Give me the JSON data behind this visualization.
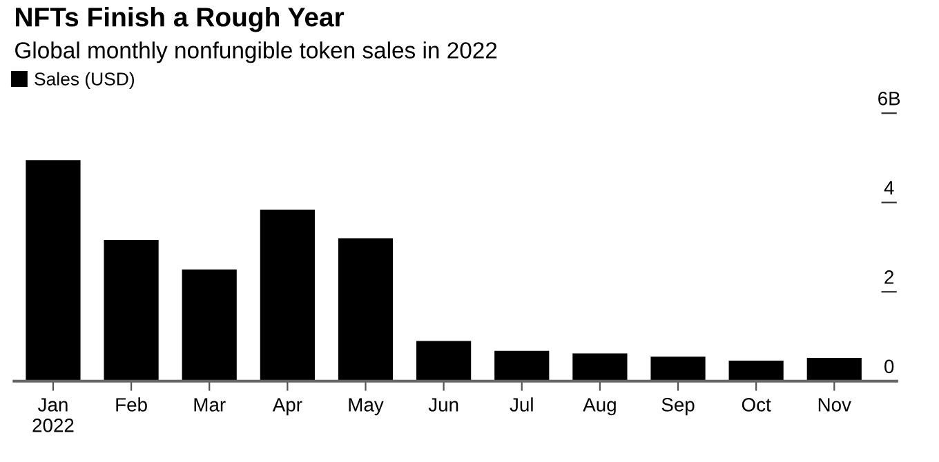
{
  "chart_data": {
    "type": "bar",
    "title": "NFTs Finish a Rough Year",
    "subtitle": "Global monthly nonfungible token sales in 2022",
    "categories": [
      "Jan\n2022",
      "Feb",
      "Mar",
      "Apr",
      "May",
      "Jun",
      "Jul",
      "Aug",
      "Sep",
      "Oct",
      "Nov"
    ],
    "series": [
      {
        "name": "Sales (USD)",
        "color": "#000000",
        "values": [
          4.95,
          3.16,
          2.5,
          3.84,
          3.2,
          0.9,
          0.68,
          0.62,
          0.55,
          0.46,
          0.52
        ]
      }
    ],
    "ylim": [
      0,
      6
    ],
    "yticks": [
      0,
      2,
      4,
      {
        "value": 6,
        "label": "6B"
      }
    ],
    "grid": false,
    "legend": "top left"
  }
}
